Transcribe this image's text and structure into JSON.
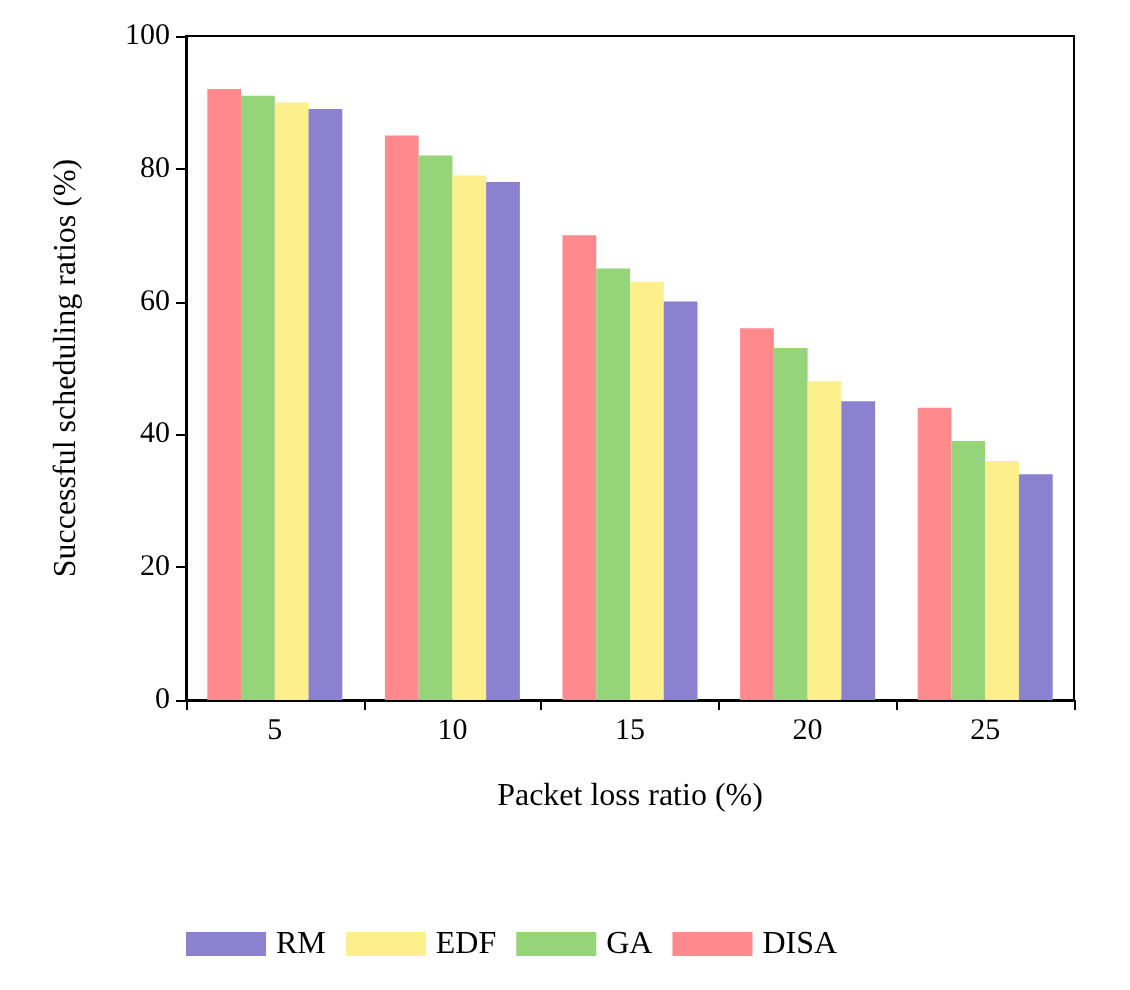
{
  "chart_data": {
    "type": "bar",
    "xlabel": "Packet loss ratio (%)",
    "ylabel": "Successful scheduling ratios (%)",
    "categories": [
      "5",
      "10",
      "15",
      "20",
      "25"
    ],
    "series": [
      {
        "name": "DISA",
        "color": "#fe8a8e",
        "values": [
          92,
          85,
          70,
          56,
          44
        ]
      },
      {
        "name": "GA",
        "color": "#96d47a",
        "values": [
          91,
          82,
          65,
          53,
          39
        ]
      },
      {
        "name": "EDF",
        "color": "#fdf08c",
        "values": [
          90,
          79,
          63,
          48,
          36
        ]
      },
      {
        "name": "RM",
        "color": "#8c80d0",
        "values": [
          89,
          78,
          60,
          45,
          34
        ]
      }
    ],
    "ylim": [
      0,
      100
    ],
    "yticks": [
      0,
      20,
      40,
      60,
      80,
      100
    ],
    "grid": false,
    "legend": "bottom"
  }
}
